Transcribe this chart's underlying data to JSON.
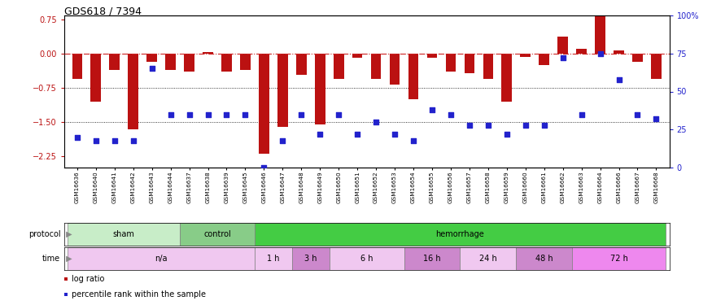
{
  "title": "GDS618 / 7394",
  "samples": [
    "GSM16636",
    "GSM16640",
    "GSM16641",
    "GSM16642",
    "GSM16643",
    "GSM16644",
    "GSM16637",
    "GSM16638",
    "GSM16639",
    "GSM16645",
    "GSM16646",
    "GSM16647",
    "GSM16648",
    "GSM16649",
    "GSM16650",
    "GSM16651",
    "GSM16652",
    "GSM16653",
    "GSM16654",
    "GSM16655",
    "GSM16656",
    "GSM16657",
    "GSM16658",
    "GSM16659",
    "GSM16660",
    "GSM16661",
    "GSM16662",
    "GSM16663",
    "GSM16664",
    "GSM16666",
    "GSM16667",
    "GSM16668"
  ],
  "log_ratio": [
    -0.55,
    -1.05,
    -0.35,
    -1.65,
    -0.18,
    -0.35,
    -0.38,
    0.05,
    -0.38,
    -0.35,
    -2.2,
    -1.6,
    -0.45,
    -1.55,
    -0.55,
    -0.08,
    -0.55,
    -0.68,
    -1.0,
    -0.08,
    -0.38,
    -0.42,
    -0.55,
    -1.05,
    -0.07,
    -0.25,
    0.38,
    0.12,
    0.85,
    0.08,
    -0.18,
    -0.55
  ],
  "pct_rank": [
    20,
    18,
    18,
    18,
    65,
    35,
    35,
    35,
    35,
    35,
    0,
    18,
    35,
    22,
    35,
    22,
    30,
    22,
    18,
    38,
    35,
    28,
    28,
    22,
    28,
    28,
    72,
    35,
    75,
    58,
    35,
    32
  ],
  "ylim_left": [
    -2.5,
    0.85
  ],
  "ylim_right": [
    0,
    100
  ],
  "yticks_left": [
    0.75,
    0.0,
    -0.75,
    -1.5,
    -2.25
  ],
  "yticks_right": [
    100,
    75,
    50,
    25,
    0
  ],
  "bar_color": "#bb1111",
  "dot_color": "#2222cc",
  "zero_line_color": "#cc2222",
  "ref_line1": -0.75,
  "ref_line2": -1.5,
  "protocol_groups": [
    {
      "label": "sham",
      "start": 0,
      "end": 6,
      "color": "#c8edc8"
    },
    {
      "label": "control",
      "start": 6,
      "end": 10,
      "color": "#88cc88"
    },
    {
      "label": "hemorrhage",
      "start": 10,
      "end": 32,
      "color": "#44cc44"
    }
  ],
  "time_groups": [
    {
      "label": "n/a",
      "start": 0,
      "end": 10,
      "color": "#f0c8f0"
    },
    {
      "label": "1 h",
      "start": 10,
      "end": 12,
      "color": "#f0c8f0"
    },
    {
      "label": "3 h",
      "start": 12,
      "end": 14,
      "color": "#cc88cc"
    },
    {
      "label": "6 h",
      "start": 14,
      "end": 18,
      "color": "#f0c8f0"
    },
    {
      "label": "16 h",
      "start": 18,
      "end": 21,
      "color": "#cc88cc"
    },
    {
      "label": "24 h",
      "start": 21,
      "end": 24,
      "color": "#f0c8f0"
    },
    {
      "label": "48 h",
      "start": 24,
      "end": 27,
      "color": "#cc88cc"
    },
    {
      "label": "72 h",
      "start": 27,
      "end": 32,
      "color": "#ee88ee"
    }
  ],
  "label_protocol": "protocol",
  "label_time": "time",
  "label_log_ratio": "log ratio",
  "label_pct": "percentile rank within the sample",
  "arrow_color": "#888888"
}
